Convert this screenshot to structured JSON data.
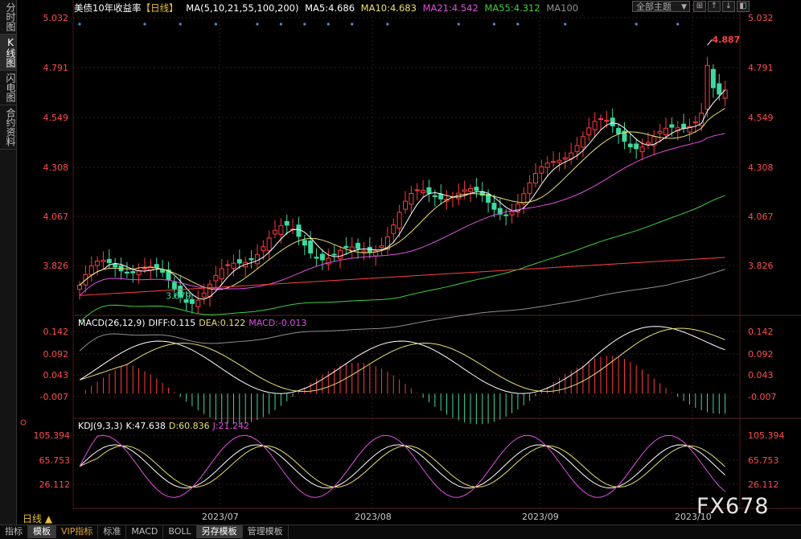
{
  "side_tabs": [
    "分时图",
    "K线图",
    "闪电图",
    "合约资料"
  ],
  "side_tab_active": 1,
  "header": {
    "title": "美债10年收益率",
    "period_tag": "【日线】",
    "ma_params": "MA(5,10,21,55,100,200)",
    "ma5": "MA5:4.686",
    "ma10": "MA10:4.683",
    "ma21": "MA21:4.542",
    "ma55": "MA55:4.312",
    "ma100": "MA100"
  },
  "toolbar": {
    "theme": "全部主题",
    "theme_caret": "▼",
    "buttons": [
      "⊞",
      "↑",
      "↓",
      "◧"
    ]
  },
  "price_axis": [
    "5.032",
    "4.791",
    "4.549",
    "4.308",
    "4.067",
    "3.826"
  ],
  "price_annotations": {
    "high": "4.887",
    "low": "3.679"
  },
  "macd": {
    "label": "MACD(26,12,9)",
    "diff": "DIFF:0.115",
    "dea": "DEA:0.122",
    "macd": "MACD:-0.013",
    "axis": [
      "0.142",
      "0.092",
      "0.043",
      "-0.007"
    ]
  },
  "kdj": {
    "label": "KDJ(9,3,3)",
    "k": "K:47.638",
    "d": "D:60.836",
    "j": "J:21.242",
    "axis": [
      "105.394",
      "65.753",
      "26.112"
    ]
  },
  "x_axis": [
    "2023/07",
    "2023/08",
    "2023/09",
    "2023/10"
  ],
  "period_label": "日线 ▲",
  "watermark": "FX678",
  "bottom_tabs": [
    "指标",
    "模板",
    "VIP指标",
    "标准",
    "MACD",
    "BOLL",
    "另存模板",
    "管理模板"
  ],
  "bottom_tab_active": [
    1,
    6
  ],
  "colors": {
    "up": "#ff3b3b",
    "down": "#3fd8a0",
    "ma5": "#ffffff",
    "ma10": "#e8e070",
    "ma21": "#e050e0",
    "ma55": "#40d040",
    "ma100": "#909090",
    "ma200": "#ff4040",
    "axis_text": "#ff4d4d",
    "grid": "#3a1a1a"
  }
}
